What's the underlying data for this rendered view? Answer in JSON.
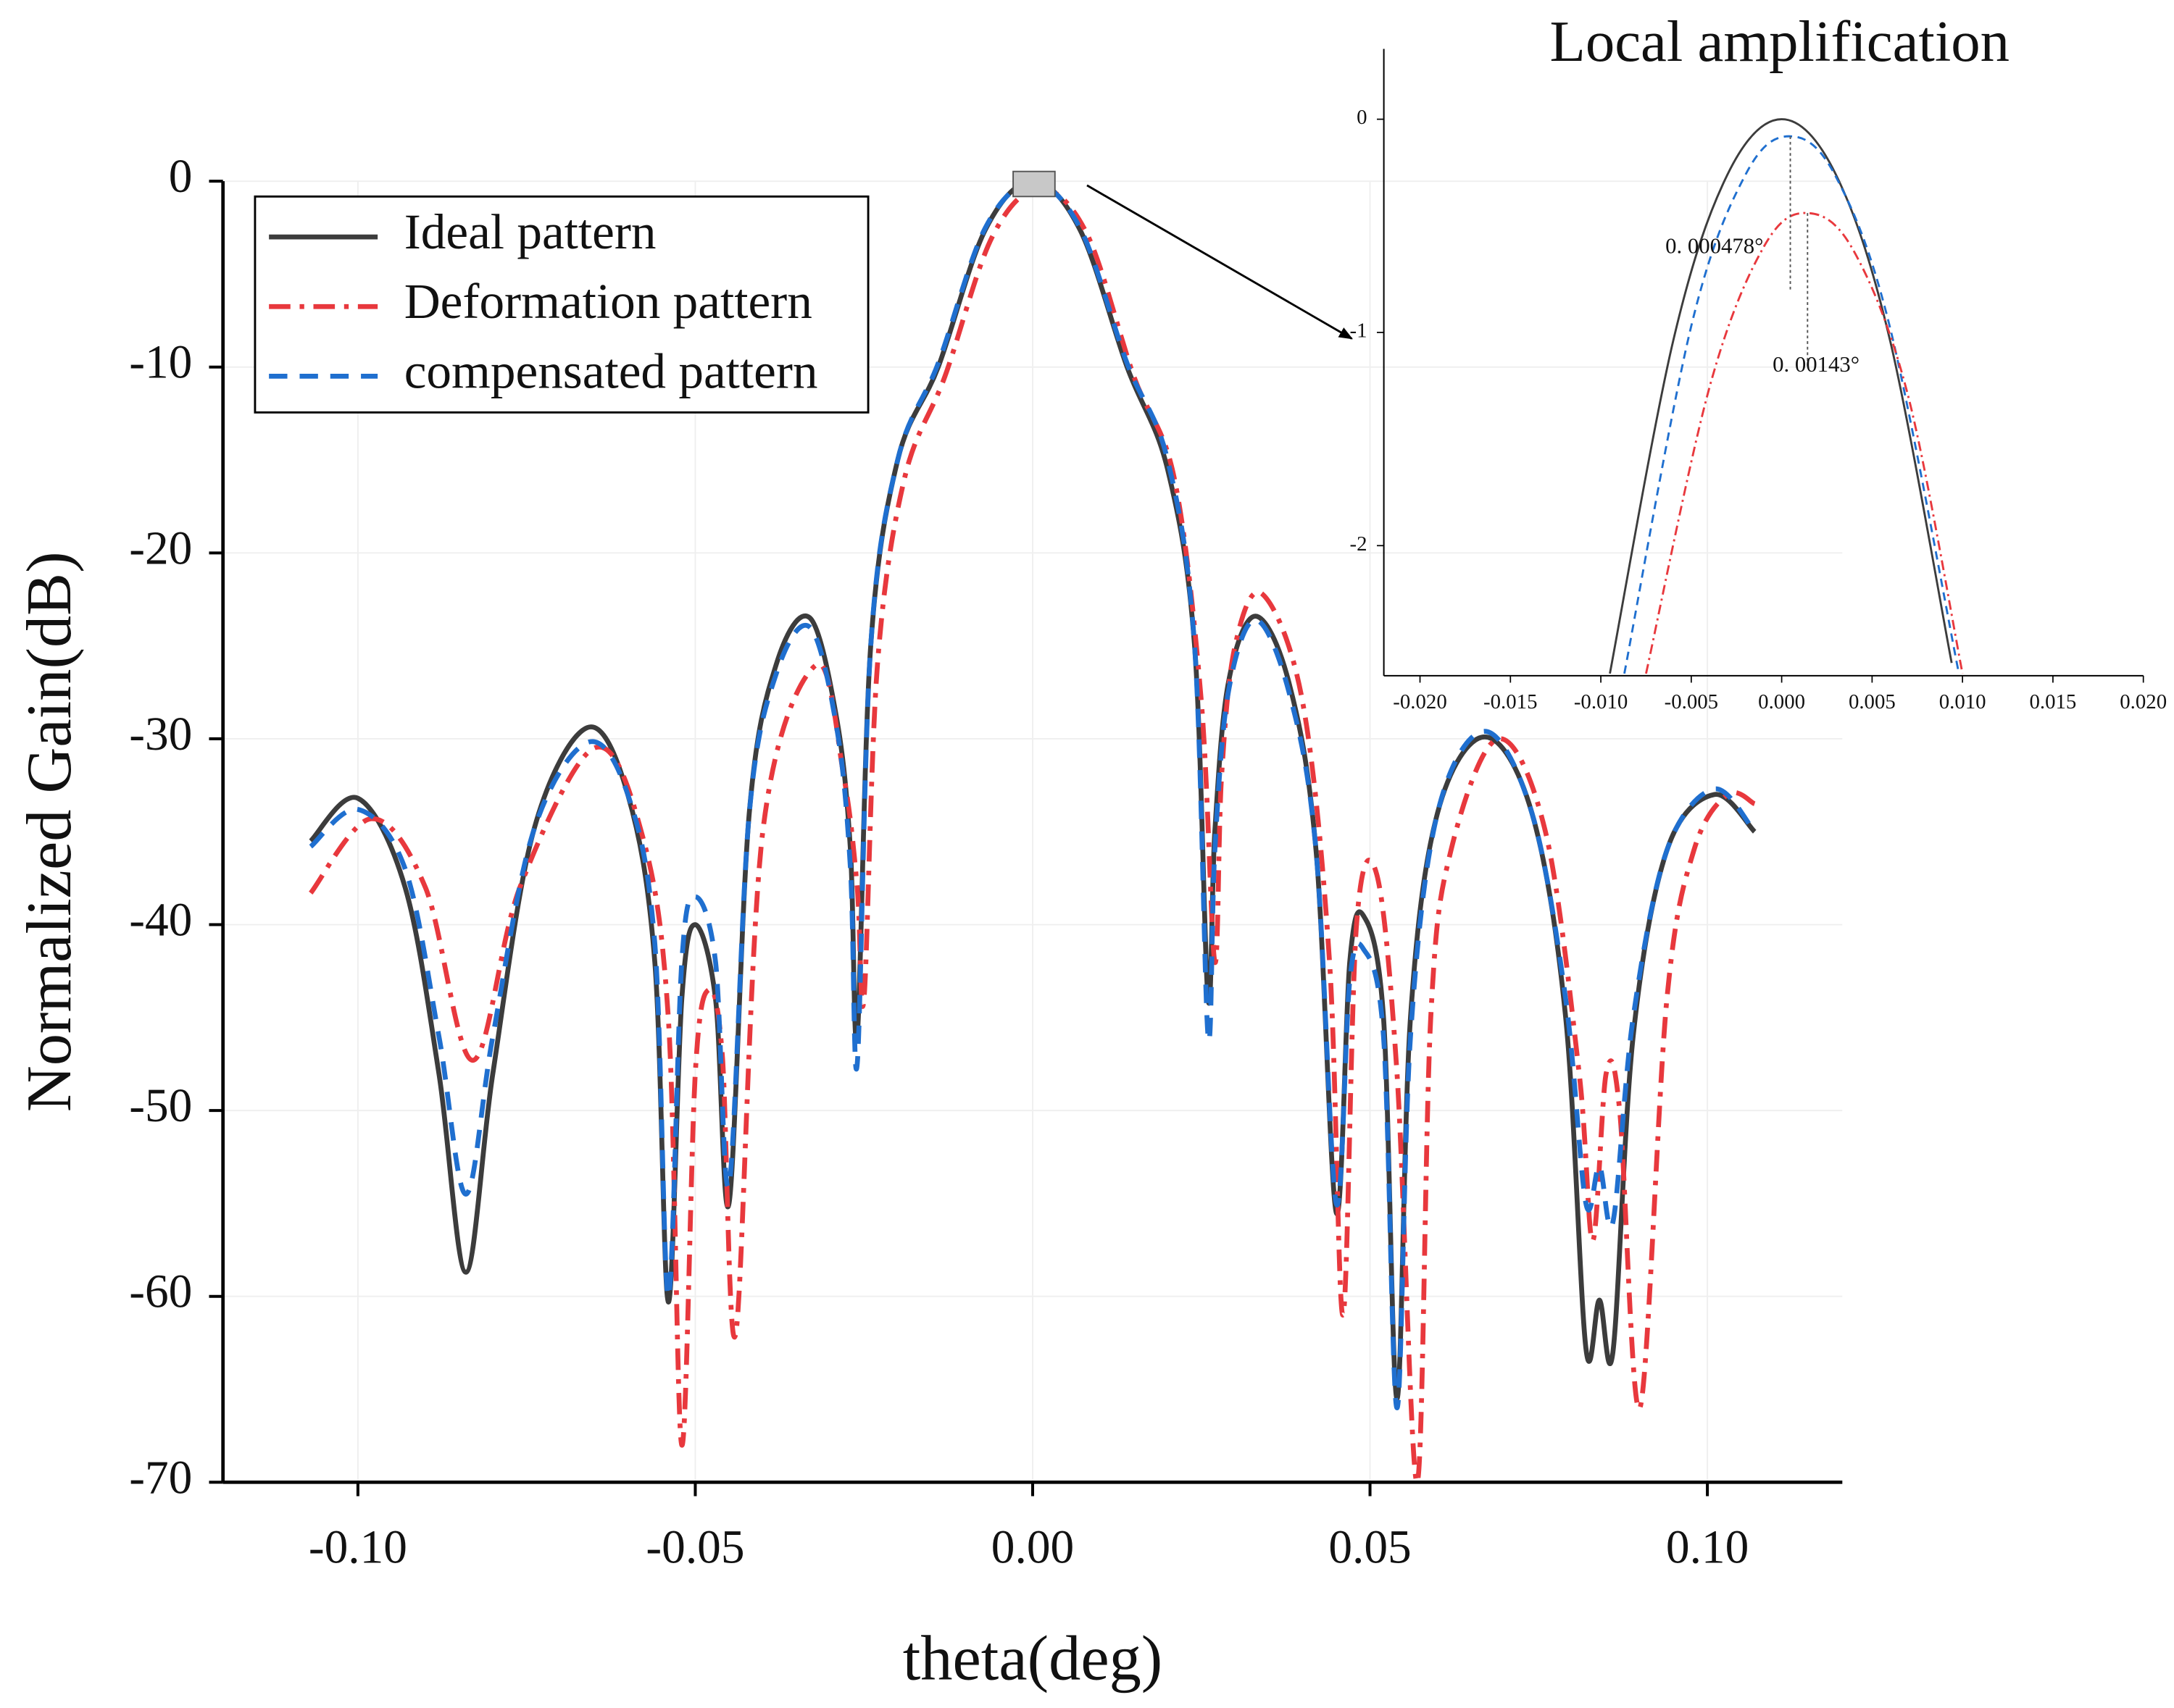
{
  "chart_data": [
    {
      "type": "line",
      "x_label": "theta(deg)",
      "y_label": "Normalized Gain(dB)",
      "xlim": [
        -0.12,
        0.12
      ],
      "ylim": [
        -70,
        0
      ],
      "xticks": [
        {
          "value": -0.1,
          "label": "-0.10"
        },
        -0.05,
        {
          "value": 0,
          "label": "0.00"
        },
        0.05,
        {
          "value": 0.1,
          "label": "0.10"
        }
      ],
      "yticks": [
        0,
        -10,
        -20,
        -30,
        -40,
        -50,
        -60,
        -70
      ],
      "grid": true,
      "legend": "upper left",
      "series": [
        {
          "name": "Ideal pattern",
          "color": "#3c3c3c",
          "line_style": "solid",
          "x": [
            -0.107,
            -0.1,
            -0.093,
            -0.088,
            -0.084,
            -0.08,
            -0.074,
            -0.066,
            -0.06,
            -0.056,
            -0.054,
            -0.052,
            -0.05,
            -0.047,
            -0.045,
            -0.042,
            -0.038,
            -0.033,
            -0.029,
            -0.027,
            -0.026,
            -0.024,
            -0.02,
            -0.014,
            -0.007,
            0,
            0.007,
            0.014,
            0.02,
            0.024,
            0.026,
            0.027,
            0.029,
            0.033,
            0.038,
            0.042,
            0.045,
            0.047,
            0.049,
            0.052,
            0.054,
            0.056,
            0.06,
            0.067,
            0.074,
            0.079,
            0.082,
            0.084,
            0.086,
            0.089,
            0.094,
            0.101,
            0.107
          ],
          "values": [
            -35.5,
            -33.2,
            -38,
            -48,
            -58.7,
            -48,
            -35,
            -29.4,
            -33,
            -42,
            -60.3,
            -44,
            -40,
            -44,
            -55,
            -34,
            -26,
            -23.5,
            -29,
            -36,
            -46,
            -25,
            -15,
            -10,
            -2.6,
            0,
            -2.6,
            -10,
            -15.5,
            -25,
            -44,
            -35,
            -27,
            -23.4,
            -27,
            -36,
            -55.5,
            -42,
            -39.5,
            -45,
            -65.5,
            -45,
            -34,
            -29.9,
            -34,
            -45,
            -62.8,
            -60.2,
            -63,
            -46,
            -36,
            -33,
            -35
          ]
        },
        {
          "name": "Deformation pattern",
          "color": "#e8383d",
          "line_style": "dashdot",
          "x": [
            -0.107,
            -0.098,
            -0.09,
            -0.083,
            -0.076,
            -0.065,
            -0.058,
            -0.054,
            -0.052,
            -0.05,
            -0.048,
            -0.046,
            -0.044,
            -0.04,
            -0.032,
            -0.028,
            -0.026,
            -0.025,
            -0.023,
            -0.019,
            -0.013,
            -0.006,
            0.001,
            0.008,
            0.015,
            0.021,
            0.025,
            0.027,
            0.028,
            0.03,
            0.034,
            0.04,
            0.044,
            0.046,
            0.048,
            0.051,
            0.054,
            0.057,
            0.059,
            0.062,
            0.069,
            0.076,
            0.081,
            0.083,
            0.085,
            0.087,
            0.09,
            0.094,
            0.098,
            0.103,
            0.107
          ],
          "values": [
            -38.3,
            -34.3,
            -38,
            -47.3,
            -38,
            -30.5,
            -35,
            -45,
            -68,
            -48,
            -43.5,
            -47,
            -62,
            -35,
            -26,
            -32,
            -38,
            -44,
            -26,
            -16,
            -10.5,
            -3,
            -0.4,
            -2.8,
            -10.5,
            -16,
            -28,
            -42,
            -32,
            -25,
            -22.2,
            -28,
            -42,
            -61,
            -40,
            -37.3,
            -48,
            -70,
            -45,
            -36,
            -30,
            -35,
            -48,
            -57,
            -48,
            -50,
            -66,
            -44,
            -36,
            -33,
            -33.5
          ]
        },
        {
          "name": "compensated pattern",
          "color": "#1f6fcf",
          "line_style": "dash",
          "x": [
            -0.107,
            -0.1,
            -0.093,
            -0.088,
            -0.084,
            -0.08,
            -0.074,
            -0.066,
            -0.06,
            -0.056,
            -0.054,
            -0.052,
            -0.05,
            -0.047,
            -0.045,
            -0.042,
            -0.038,
            -0.033,
            -0.029,
            -0.027,
            -0.026,
            -0.024,
            -0.02,
            -0.014,
            -0.007,
            0,
            0.007,
            0.014,
            0.02,
            0.024,
            0.026,
            0.027,
            0.029,
            0.033,
            0.038,
            0.042,
            0.045,
            0.047,
            0.049,
            0.052,
            0.054,
            0.056,
            0.06,
            0.067,
            0.074,
            0.079,
            0.082,
            0.084,
            0.086,
            0.089,
            0.094,
            0.101,
            0.107
          ],
          "values": [
            -35.8,
            -33.8,
            -37,
            -46,
            -54.5,
            -46,
            -35,
            -30.2,
            -33,
            -41,
            -60,
            -42,
            -38.5,
            -42,
            -54,
            -34,
            -26.5,
            -24,
            -29.5,
            -37,
            -47.5,
            -25,
            -15,
            -9.8,
            -2.5,
            -0.1,
            -2.5,
            -9.8,
            -15,
            -25,
            -46,
            -36,
            -27.5,
            -23.6,
            -27.5,
            -36,
            -55,
            -43,
            -41.3,
            -46,
            -66,
            -46,
            -34,
            -29.6,
            -34,
            -44,
            -55,
            -53,
            -56,
            -45,
            -36,
            -32.7,
            -35
          ]
        }
      ]
    },
    {
      "type": "line",
      "title": "Local amplification",
      "xlim": [
        -0.022,
        0.02
      ],
      "ylim": [
        -2.61,
        0.33
      ],
      "xticks": [
        {
          "value": -0.02,
          "label": "-0.020"
        },
        {
          "value": -0.015,
          "label": "-0.015"
        },
        {
          "value": -0.01,
          "label": "-0.010"
        },
        {
          "value": -0.005,
          "label": "-0.005"
        },
        {
          "value": 0,
          "label": "0.000"
        },
        {
          "value": 0.005,
          "label": "0.005"
        },
        {
          "value": 0.01,
          "label": "0.010"
        },
        {
          "value": 0.015,
          "label": "0.015"
        },
        {
          "value": 0.02,
          "label": "0.020"
        }
      ],
      "yticks": [
        0,
        -1,
        -2
      ],
      "annotations": [
        {
          "text": "0. 000478°"
        },
        {
          "text": "0. 00143°"
        }
      ],
      "series": [
        {
          "name": "Ideal pattern",
          "color": "#3c3c3c",
          "line_style": "solid",
          "x": [
            -0.0095,
            -0.006,
            -0.003,
            0,
            0.003,
            0.006,
            0.0094
          ],
          "values": [
            -2.6,
            -1.04,
            -0.26,
            0,
            -0.26,
            -1.04,
            -2.55
          ]
        },
        {
          "name": "compensated pattern",
          "color": "#1f6fcf",
          "line_style": "dash",
          "x": [
            -0.0087,
            -0.005,
            -0.002,
            0.000478,
            0.003,
            0.006,
            0.0098
          ],
          "values": [
            -2.6,
            -0.97,
            -0.26,
            -0.08,
            -0.27,
            -0.98,
            -2.6
          ]
        },
        {
          "name": "Deformation pattern",
          "color": "#e8383d",
          "line_style": "dashdot",
          "x": [
            -0.0075,
            -0.004,
            -0.001,
            0.00143,
            0.004,
            0.007,
            0.01
          ],
          "values": [
            -2.6,
            -1.26,
            -0.6,
            -0.44,
            -0.62,
            -1.3,
            -2.6
          ]
        }
      ]
    }
  ]
}
